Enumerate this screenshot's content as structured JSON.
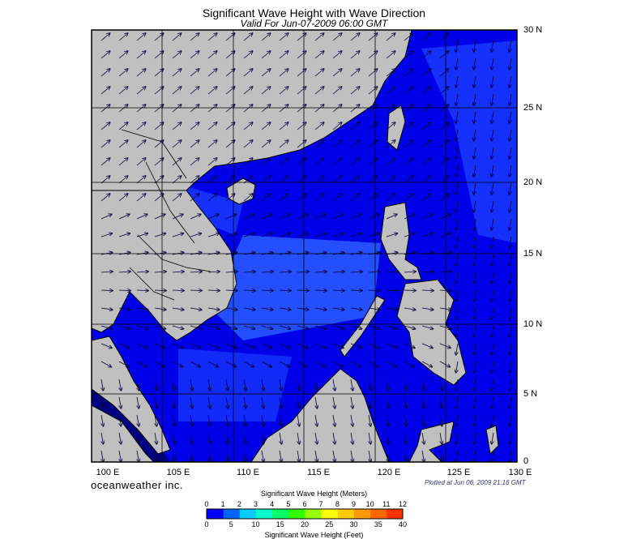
{
  "title": "Significant Wave Height with Wave Direction",
  "subtitle": "Valid For Jun-07-2009 06:00 GMT",
  "lat_labels": [
    "30 N",
    "25 N",
    "20 N",
    "15 N",
    "10 N",
    "5 N",
    "0"
  ],
  "lon_labels": [
    "100 E",
    "105 E",
    "110 E",
    "115 E",
    "120 E",
    "125 E",
    "130 E"
  ],
  "brand": "oceanweather inc.",
  "plotted_at": "Plotted at Jun 06, 2009 21:16 GMT",
  "colorbar": {
    "title_meters": "Significant Wave Height (Meters)",
    "title_feet": "Significant Wave Height (Feet)",
    "meter_ticks": [
      "0",
      "1",
      "2",
      "3",
      "4",
      "5",
      "6",
      "7",
      "8",
      "9",
      "10",
      "11",
      "12"
    ],
    "feet_ticks": [
      "0",
      "5",
      "10",
      "15",
      "20",
      "25",
      "30",
      "35",
      "40"
    ],
    "colors": [
      "#0000ff",
      "#0066ff",
      "#00ccff",
      "#00ffcc",
      "#00ff66",
      "#33ff00",
      "#99ff00",
      "#ffff00",
      "#ffcc00",
      "#ff9900",
      "#ff6600",
      "#ff3300"
    ]
  },
  "map_colors": {
    "land": "#c0c0c0",
    "sea_dark": "#0000e8",
    "sea_mid": "#1a3cff",
    "sea_light": "#2b5cff",
    "deep_band": "#000080"
  }
}
